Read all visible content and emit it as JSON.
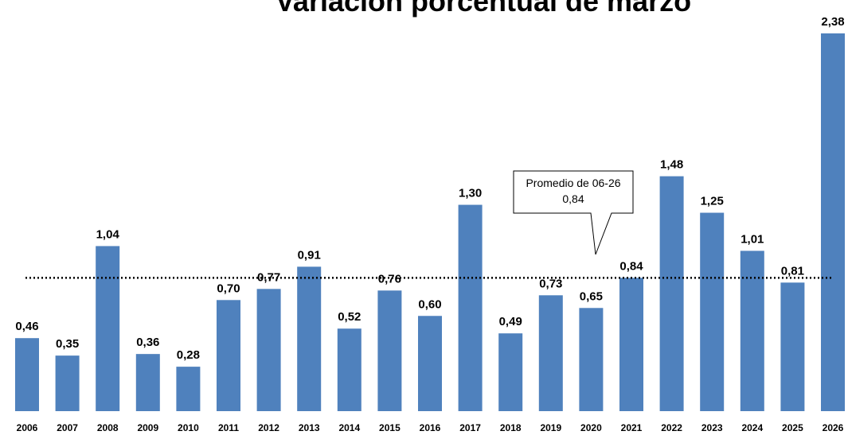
{
  "chart_data": {
    "type": "bar",
    "title": "Variación porcentual de marzo",
    "categories": [
      "2006",
      "2007",
      "2008",
      "2009",
      "2010",
      "2011",
      "2012",
      "2013",
      "2014",
      "2015",
      "2016",
      "2017",
      "2018",
      "2019",
      "2020",
      "2021",
      "2022",
      "2023",
      "2024",
      "2025",
      "2026"
    ],
    "values": [
      0.46,
      0.35,
      1.04,
      0.36,
      0.28,
      0.7,
      0.77,
      0.91,
      0.52,
      0.76,
      0.6,
      1.3,
      0.49,
      0.73,
      0.65,
      0.84,
      1.48,
      1.25,
      1.01,
      0.81,
      2.38
    ],
    "value_labels": [
      "0,46",
      "0,35",
      "1,04",
      "0,36",
      "0,28",
      "0,70",
      "0,77",
      "0,91",
      "0,52",
      "0,76",
      "0,60",
      "1,30",
      "0,49",
      "0,73",
      "0,65",
      "0,84",
      "1,48",
      "1,25",
      "1,01",
      "0,81",
      "2,38"
    ],
    "color": "#4f81bd",
    "average": {
      "label": "Promedio de 06-26",
      "value": 0.84,
      "value_label": "0,84"
    }
  }
}
